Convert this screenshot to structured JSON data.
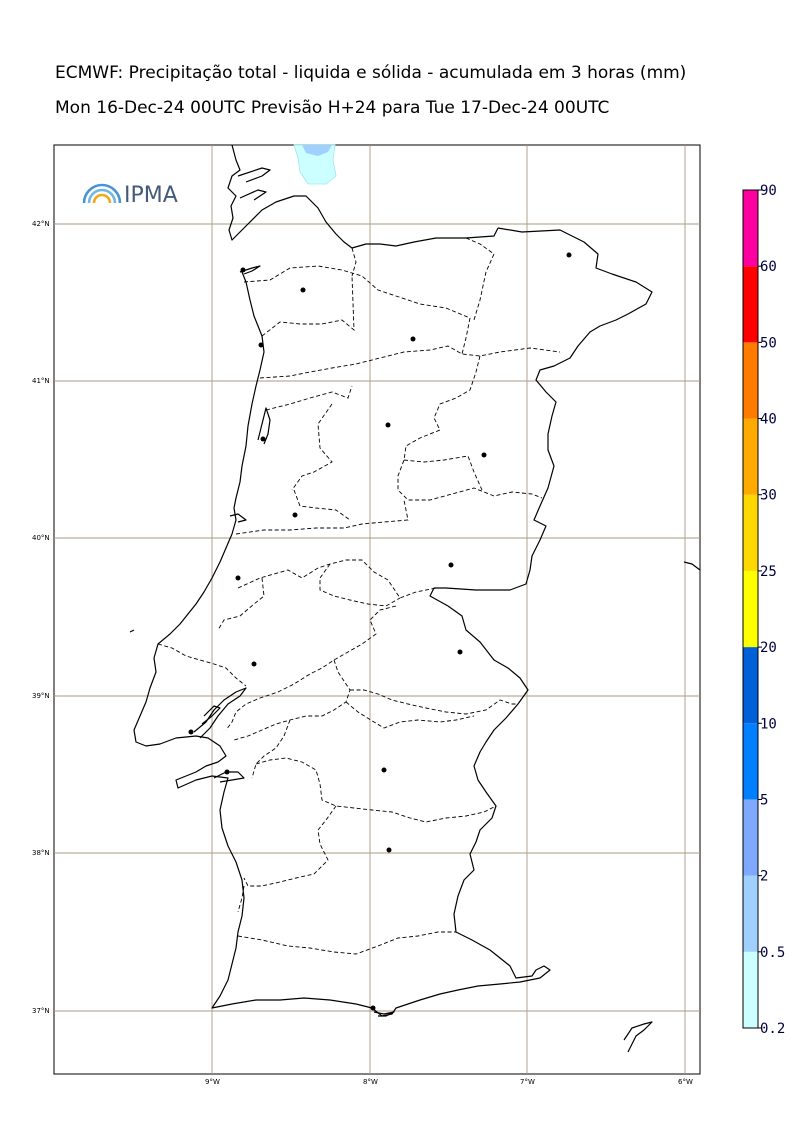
{
  "header": {
    "title": "ECMWF: Precipitação total - liquida e sólida - acumulada em 3 horas (mm)",
    "subtitle": "Mon 16-Dec-24 00UTC Previsão H+24 para Tue 17-Dec-24 00UTC"
  },
  "logo": {
    "text": "IPMA",
    "icon": "rainbow-arcs-icon"
  },
  "map": {
    "lat_labels": [
      "42°N",
      "41°N",
      "40°N",
      "39°N",
      "38°N",
      "37°N"
    ],
    "lon_labels": [
      "9°W",
      "8°W",
      "7°W",
      "6°W"
    ],
    "station_count_marker": "dot"
  },
  "colorbar": {
    "levels": [
      "0.2",
      "0.5",
      "2",
      "5",
      "10",
      "20",
      "25",
      "30",
      "40",
      "50",
      "60",
      "90"
    ],
    "colors": [
      "#ccffff",
      "#a0d0ff",
      "#7fa8ff",
      "#0080ff",
      "#0060d8",
      "#ffff00",
      "#ffd800",
      "#ffaa00",
      "#ff7b00",
      "#ff0000",
      "#ff00a0"
    ]
  }
}
